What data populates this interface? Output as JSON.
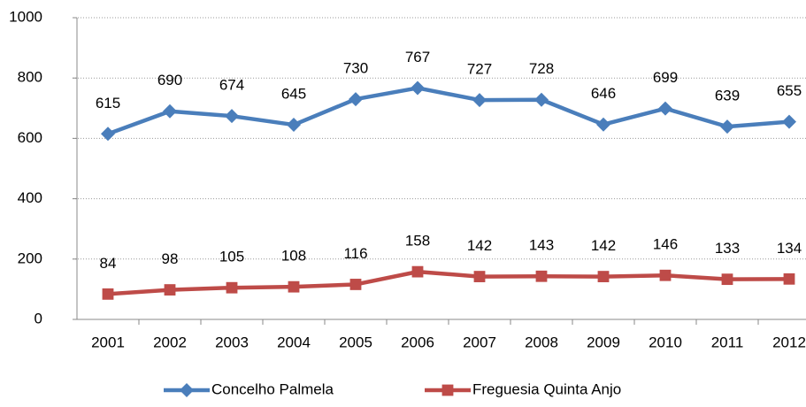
{
  "chart_data": {
    "type": "line",
    "categories": [
      "2001",
      "2002",
      "2003",
      "2004",
      "2005",
      "2006",
      "2007",
      "2008",
      "2009",
      "2010",
      "2011",
      "2012"
    ],
    "series": [
      {
        "name": "Concelho Palmela",
        "color": "#4a7ebb",
        "marker": "diamond",
        "values": [
          615,
          690,
          674,
          645,
          730,
          767,
          727,
          728,
          646,
          699,
          639,
          655
        ]
      },
      {
        "name": "Freguesia Quinta Anjo",
        "color": "#be4b48",
        "marker": "square",
        "values": [
          84,
          98,
          105,
          108,
          116,
          158,
          142,
          143,
          142,
          146,
          133,
          134
        ]
      }
    ],
    "ylim": [
      0,
      1000
    ],
    "yticks": [
      0,
      200,
      400,
      600,
      800,
      1000
    ],
    "grid": true,
    "legend": "bottom"
  }
}
